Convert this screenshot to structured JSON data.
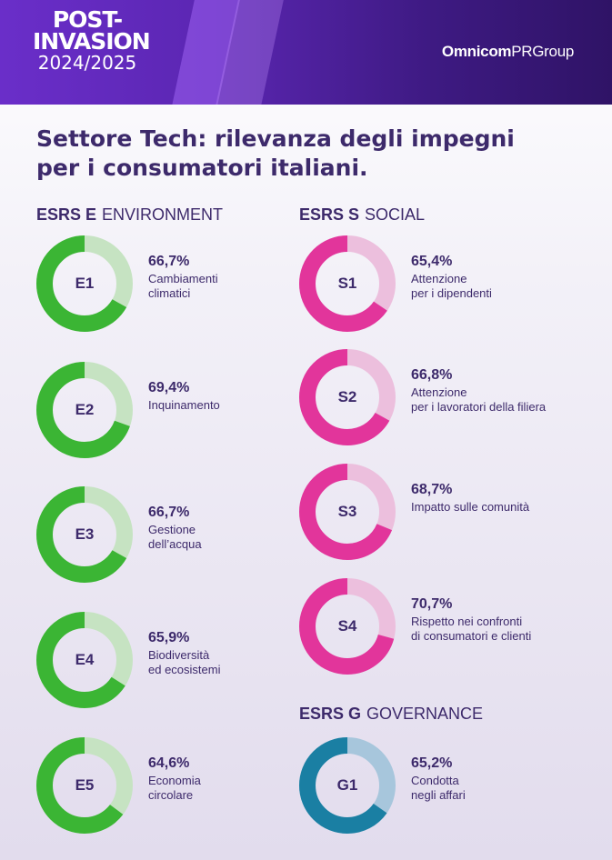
{
  "header": {
    "logo_line1": "POST-",
    "logo_line2": "INVASION",
    "logo_line3": "2024/2025",
    "brand_bold": "Omnicom",
    "brand_rest": "PRGroup"
  },
  "title_line1": "Settore Tech: rilevanza degli impegni",
  "title_line2": "per i consumatori italiani.",
  "sections": {
    "E": {
      "code": "ESRS E",
      "name": "ENVIRONMENT"
    },
    "S": {
      "code": "ESRS S",
      "name": "SOCIAL"
    },
    "G": {
      "code": "ESRS G",
      "name": "GOVERNANCE"
    }
  },
  "colors": {
    "E": {
      "fill": "#3bb534",
      "track": "#c6e3c2"
    },
    "S": {
      "fill": "#e2359b",
      "track": "#ecbfdd"
    },
    "G": {
      "fill": "#1a7fa3",
      "track": "#a7c6dc"
    }
  },
  "chart_data": {
    "type": "donut",
    "items": [
      {
        "id": "E1",
        "group": "E",
        "value": 66.7,
        "value_label": "66,7%",
        "label_lines": [
          "Cambiamenti",
          "climatici"
        ]
      },
      {
        "id": "E2",
        "group": "E",
        "value": 69.4,
        "value_label": "69,4%",
        "label_lines": [
          "Inquinamento"
        ]
      },
      {
        "id": "E3",
        "group": "E",
        "value": 66.7,
        "value_label": "66,7%",
        "label_lines": [
          "Gestione",
          "dell’acqua"
        ]
      },
      {
        "id": "E4",
        "group": "E",
        "value": 65.9,
        "value_label": "65,9%",
        "label_lines": [
          "Biodiversità",
          "ed ecosistemi"
        ]
      },
      {
        "id": "E5",
        "group": "E",
        "value": 64.6,
        "value_label": "64,6%",
        "label_lines": [
          "Economia",
          "circolare"
        ]
      },
      {
        "id": "S1",
        "group": "S",
        "value": 65.4,
        "value_label": "65,4%",
        "label_lines": [
          "Attenzione",
          "per i dipendenti"
        ]
      },
      {
        "id": "S2",
        "group": "S",
        "value": 66.8,
        "value_label": "66,8%",
        "label_lines": [
          "Attenzione",
          "per i lavoratori della filiera"
        ]
      },
      {
        "id": "S3",
        "group": "S",
        "value": 68.7,
        "value_label": "68,7%",
        "label_lines": [
          "Impatto sulle comunità"
        ]
      },
      {
        "id": "S4",
        "group": "S",
        "value": 70.7,
        "value_label": "70,7%",
        "label_lines": [
          "Rispetto nei confronti",
          "di consumatori e clienti"
        ]
      },
      {
        "id": "G1",
        "group": "G",
        "value": 65.2,
        "value_label": "65,2%",
        "label_lines": [
          "Condotta",
          "negli affari"
        ]
      }
    ]
  }
}
